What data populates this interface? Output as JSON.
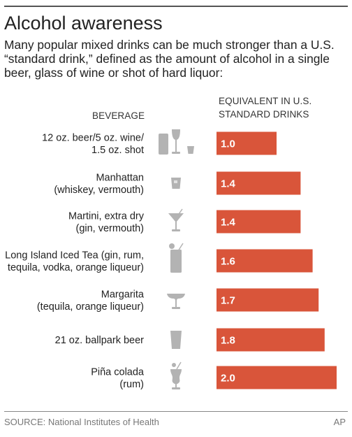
{
  "title": "Alcohol awareness",
  "subtitle": "Many popular mixed drinks can be much stronger than a U.S. “standard drink,” defined as the amount of alcohol in a single beer, glass of wine or shot of hard liquor:",
  "beverage_header": "BEVERAGE",
  "value_header": "EQUIVALENT IN U.S.\nSTANDARD DRINKS",
  "source": "SOURCE: National Institutes of Health",
  "credit": "AP",
  "colors": {
    "bar": "#d9553a",
    "icon": "#b3b3b3"
  },
  "chart_data": {
    "type": "bar",
    "orientation": "horizontal",
    "categories": [
      [
        "12 oz. beer/5 oz. wine/",
        "1.5 oz. shot"
      ],
      [
        "Manhattan",
        "(whiskey,  vermouth)"
      ],
      [
        "Martini, extra dry",
        "(gin, vermouth)"
      ],
      [
        "Long Island Iced Tea (gin, rum,",
        "tequila, vodka, orange liqueur)"
      ],
      [
        "Margarita",
        "(tequila, orange liqueur)"
      ],
      [
        "21 oz. ballpark beer"
      ],
      [
        "Piña colada",
        "(rum)"
      ]
    ],
    "icons": [
      "beer-wine-shot-icon",
      "rocks-glass-icon",
      "martini-glass-icon",
      "highball-glass-icon",
      "margarita-glass-icon",
      "pint-glass-icon",
      "hurricane-glass-icon"
    ],
    "values": [
      1.0,
      1.4,
      1.4,
      1.6,
      1.7,
      1.8,
      2.0
    ],
    "value_labels": [
      "1.0",
      "1.4",
      "1.4",
      "1.6",
      "1.7",
      "1.8",
      "2.0"
    ],
    "xlim": [
      0,
      2.0
    ]
  }
}
